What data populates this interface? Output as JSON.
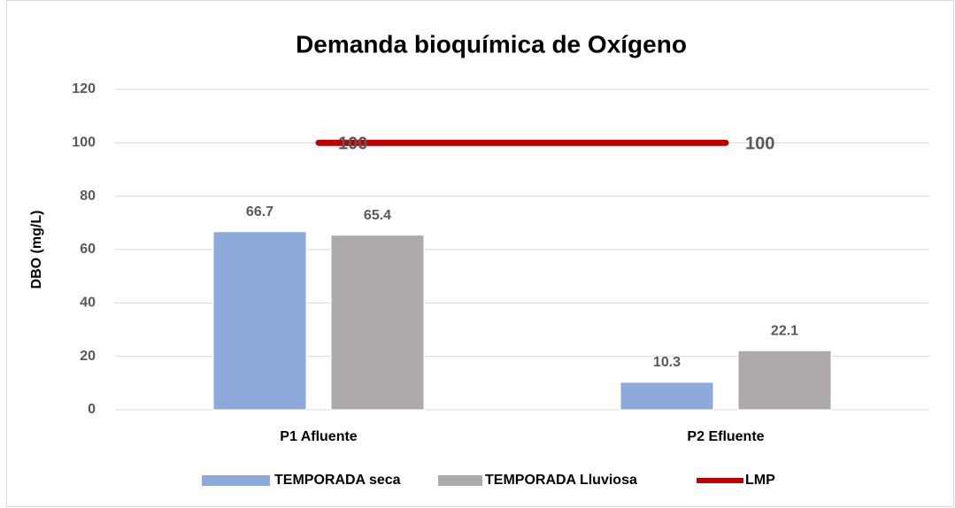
{
  "chart_data": {
    "type": "bar",
    "title": "Demanda bioquímica de Oxígeno",
    "y_label": "DBO (mg/L)",
    "categories": [
      "P1 Afluente",
      "P2 Efluente"
    ],
    "series": [
      {
        "name": "TEMPORADA seca",
        "color": "#8eaadb",
        "values": [
          66.7,
          10.3
        ]
      },
      {
        "name": "TEMPORADA Lluviosa",
        "color": "#aeaaaa",
        "values": [
          65.4,
          22.1
        ]
      },
      {
        "name": "LMP",
        "color": "#c00000",
        "type": "line",
        "values": [
          100,
          100
        ]
      }
    ],
    "ylim": [
      0,
      120
    ],
    "yticks": [
      0,
      20,
      40,
      60,
      80,
      100,
      120
    ],
    "grid": true,
    "legend": "bottom"
  }
}
